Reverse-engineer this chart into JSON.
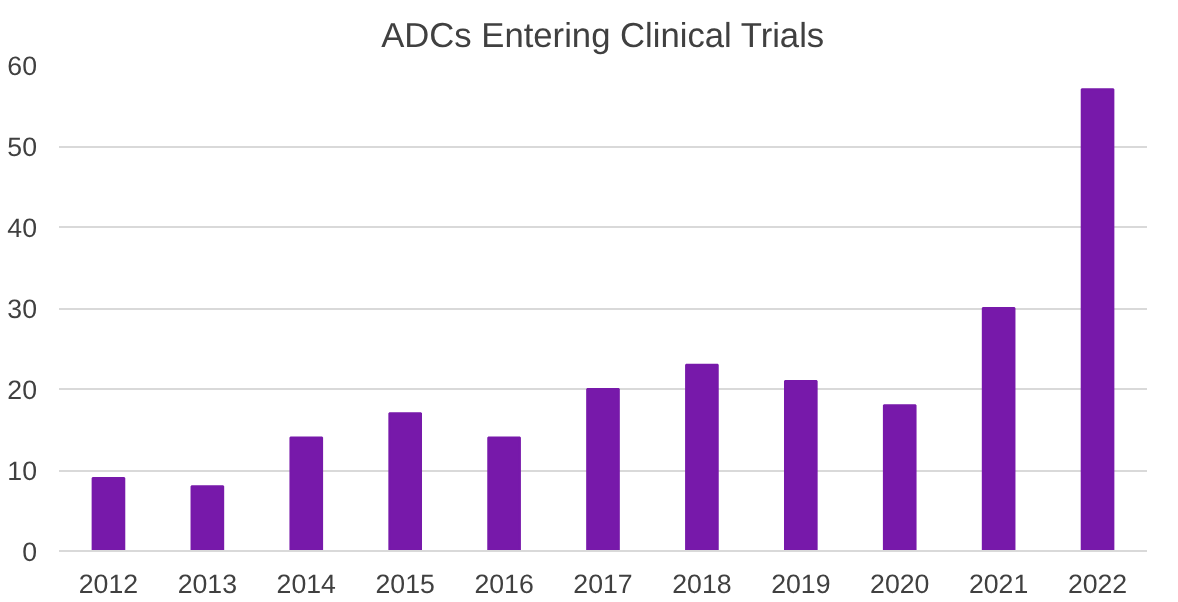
{
  "chart_data": {
    "type": "bar",
    "title": "ADCs Entering Clinical Trials",
    "categories": [
      "2012",
      "2013",
      "2014",
      "2015",
      "2016",
      "2017",
      "2018",
      "2019",
      "2020",
      "2021",
      "2022"
    ],
    "values": [
      9,
      8,
      14,
      17,
      14,
      20,
      23,
      21,
      18,
      30,
      57
    ],
    "color": "#7719aa",
    "ylim": [
      0,
      60
    ],
    "yticks": [
      0,
      10,
      20,
      30,
      40,
      50,
      60
    ],
    "grid": "y"
  }
}
